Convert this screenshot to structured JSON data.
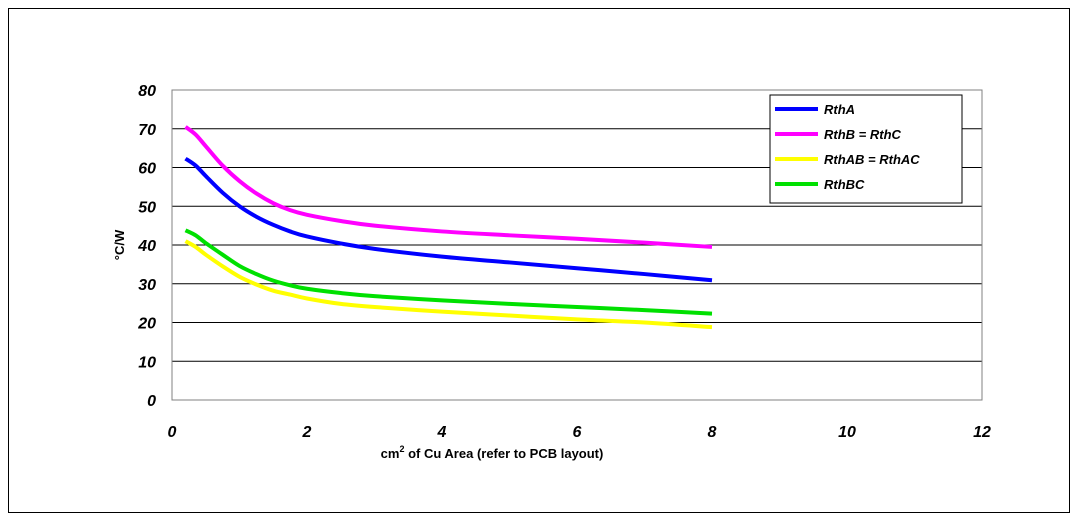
{
  "chart_data": {
    "type": "line",
    "title": "",
    "xlabel_prefix": "cm",
    "xlabel_sup": "2",
    "xlabel_suffix": " of Cu Area (refer to PCB layout)",
    "ylabel": "°C/W",
    "xlim": [
      0,
      12
    ],
    "ylim": [
      0,
      80
    ],
    "xticks": [
      "0",
      "2",
      "4",
      "6",
      "8",
      "10",
      "12"
    ],
    "yticks": [
      "0",
      "10",
      "20",
      "30",
      "40",
      "50",
      "60",
      "70",
      "80"
    ],
    "grid": "horizontal",
    "legend_position": "top-right",
    "series": [
      {
        "name": "RthA",
        "color": "#0000ff",
        "x": [
          0.2,
          0.35,
          0.5,
          0.75,
          1.0,
          1.25,
          1.5,
          1.75,
          2.0,
          2.5,
          3.0,
          4.0,
          5.0,
          6.0,
          7.0,
          8.0
        ],
        "values": [
          62.3,
          60.5,
          57.8,
          53.5,
          50.0,
          47.3,
          45.2,
          43.5,
          42.2,
          40.4,
          39.0,
          37.0,
          35.5,
          34.0,
          32.5,
          30.9
        ]
      },
      {
        "name": "RthB = RthC",
        "color": "#ff00ff",
        "x": [
          0.2,
          0.35,
          0.5,
          0.75,
          1.0,
          1.25,
          1.5,
          1.75,
          2.0,
          2.5,
          3.0,
          4.0,
          5.0,
          6.0,
          7.0,
          8.0
        ],
        "values": [
          70.5,
          68.5,
          65.5,
          60.5,
          56.5,
          53.3,
          50.8,
          49.0,
          47.8,
          46.2,
          45.0,
          43.5,
          42.5,
          41.6,
          40.6,
          39.5
        ]
      },
      {
        "name": "RthAB = RthAC",
        "color": "#ffff00",
        "x": [
          0.2,
          0.35,
          0.5,
          0.75,
          1.0,
          1.25,
          1.5,
          1.75,
          2.0,
          2.5,
          3.0,
          4.0,
          5.0,
          6.0,
          7.0,
          8.0
        ],
        "values": [
          41.0,
          39.5,
          37.5,
          34.5,
          31.8,
          29.8,
          28.2,
          27.2,
          26.2,
          24.8,
          24.0,
          22.8,
          21.8,
          20.8,
          20.0,
          18.8
        ]
      },
      {
        "name": "RthBC",
        "color": "#00e000",
        "x": [
          0.2,
          0.35,
          0.5,
          0.75,
          1.0,
          1.25,
          1.5,
          1.75,
          2.0,
          2.5,
          3.0,
          4.0,
          5.0,
          6.0,
          7.0,
          8.0
        ],
        "values": [
          43.8,
          42.5,
          40.5,
          37.5,
          34.6,
          32.5,
          30.8,
          29.6,
          28.7,
          27.6,
          26.8,
          25.7,
          24.8,
          24.0,
          23.2,
          22.3
        ]
      }
    ]
  }
}
